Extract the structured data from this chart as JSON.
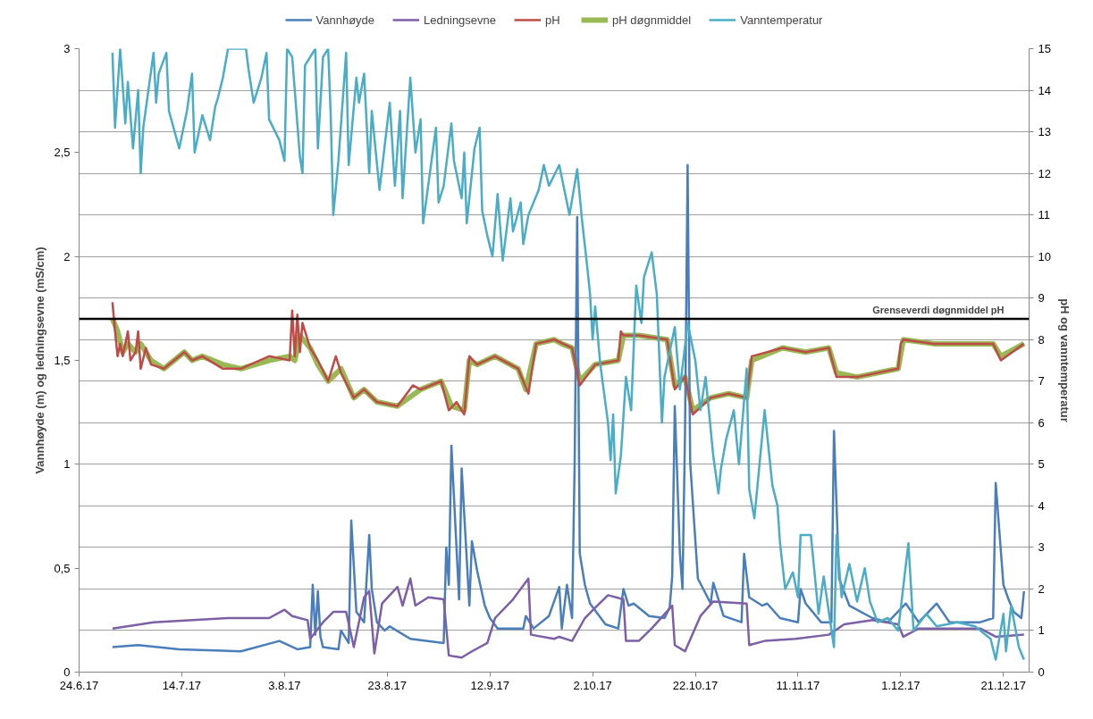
{
  "chart_data": {
    "type": "line",
    "ylabel": "Vannhøyde (m) og ledningsevne (mS/cm)",
    "y2label": "pH og vanntemperatur",
    "xlim": [
      "2017-06-24",
      "2017-12-26"
    ],
    "xticks": [
      {
        "value": "2017-06-24",
        "label": "24.6.17"
      },
      {
        "value": "2017-07-14",
        "label": "14.7.17"
      },
      {
        "value": "2017-08-03",
        "label": "3.8.17"
      },
      {
        "value": "2017-08-23",
        "label": "23.8.17"
      },
      {
        "value": "2017-09-12",
        "label": "12.9.17"
      },
      {
        "value": "2017-10-02",
        "label": "2.10.17"
      },
      {
        "value": "2017-10-22",
        "label": "22.10.17"
      },
      {
        "value": "2017-11-11",
        "label": "11.11.17"
      },
      {
        "value": "2017-12-01",
        "label": "1.12.17"
      },
      {
        "value": "2017-12-21",
        "label": "21.12.17"
      }
    ],
    "ylim": [
      0,
      3
    ],
    "yticks": [
      0,
      {
        "value": 0.5,
        "label": "0,5"
      },
      1,
      {
        "value": 1.5,
        "label": "1,5"
      },
      2,
      {
        "value": 2.5,
        "label": "2,5"
      },
      3
    ],
    "y2lim": [
      0,
      15
    ],
    "y2ticks": [
      0,
      1,
      2,
      3,
      4,
      5,
      6,
      7,
      8,
      9,
      10,
      11,
      12,
      13,
      14,
      15
    ],
    "grid": "y",
    "legend": "top",
    "ref_lines": [
      {
        "axis": "y2",
        "value": 8.5,
        "label": "Grenseverdi døgnmiddel pH",
        "color": "#000000"
      }
    ],
    "series": [
      {
        "name": "Vannhøyde",
        "color": "#4a7ebb",
        "x": [
          "2017-06-30T12:00",
          "2017-07-05T12:00",
          "2017-07-13T12:00",
          "2017-07-25T12:00",
          "2017-08-02",
          "2017-08-05T12:00",
          "2017-08-08",
          "2017-08-08T12:00",
          "2017-08-09",
          "2017-08-09T12:00",
          "2017-08-10",
          "2017-08-10T12:00",
          "2017-08-13T12:00",
          "2017-08-14",
          "2017-08-15T12:00",
          "2017-08-16",
          "2017-08-17",
          "2017-08-18T12:00",
          "2017-08-19T12:00",
          "2017-08-20",
          "2017-08-21",
          "2017-08-22T12:00",
          "2017-08-23T12:00",
          "2017-08-27T12:00",
          "2017-09-03",
          "2017-09-03T12:00",
          "2017-09-04",
          "2017-09-04T12:00",
          "2017-09-06",
          "2017-09-06T12:00",
          "2017-09-08",
          "2017-09-08T12:00",
          "2017-09-09T12:00",
          "2017-09-11",
          "2017-09-12",
          "2017-09-13T12:00",
          "2017-09-18T12:00",
          "2017-09-19",
          "2017-09-20T12:00",
          "2017-09-23T12:00",
          "2017-09-25T12:00",
          "2017-09-26",
          "2017-09-27",
          "2017-09-28",
          "2017-09-28T12:00",
          "2017-09-29",
          "2017-09-29T12:00",
          "2017-09-30T12:00",
          "2017-10-01T12:00",
          "2017-10-04T12:00",
          "2017-10-07",
          "2017-10-08",
          "2017-10-09",
          "2017-10-10",
          "2017-10-13",
          "2017-10-16",
          "2017-10-17",
          "2017-10-17T12:00",
          "2017-10-18",
          "2017-10-19",
          "2017-10-19T12:00",
          "2017-10-20",
          "2017-10-20T12:00",
          "2017-10-21",
          "2017-10-22T12:00",
          "2017-10-25",
          "2017-10-25T12:00",
          "2017-10-27T12:00",
          "2017-10-31",
          "2017-10-31T12:00",
          "2017-11-01T12:00",
          "2017-11-04",
          "2017-11-05",
          "2017-11-07T12:00",
          "2017-11-11",
          "2017-11-11T12:00",
          "2017-11-12T12:00",
          "2017-11-15T12:00",
          "2017-11-17T12:00",
          "2017-11-18",
          "2017-11-19",
          "2017-11-21",
          "2017-11-25T12:00",
          "2017-11-28T12:00",
          "2017-12-02",
          "2017-12-04T12:00",
          "2017-12-08",
          "2017-12-10T12:00",
          "2017-12-16T12:00",
          "2017-12-19",
          "2017-12-19T12:00",
          "2017-12-21",
          "2017-12-22",
          "2017-12-23",
          "2017-12-24T12:00",
          "2017-12-25"
        ],
        "values": [
          0.12,
          0.13,
          0.11,
          0.1,
          0.15,
          0.11,
          0.12,
          0.42,
          0.18,
          0.39,
          0.17,
          0.12,
          0.11,
          0.2,
          0.14,
          0.73,
          0.29,
          0.24,
          0.66,
          0.4,
          0.24,
          0.2,
          0.22,
          0.16,
          0.14,
          0.6,
          0.42,
          1.09,
          0.35,
          0.98,
          0.32,
          0.63,
          0.49,
          0.32,
          0.26,
          0.21,
          0.21,
          0.27,
          0.21,
          0.27,
          0.41,
          0.21,
          0.42,
          0.26,
          1.0,
          2.19,
          0.57,
          0.42,
          0.33,
          0.23,
          0.21,
          0.4,
          0.32,
          0.33,
          0.27,
          0.26,
          0.31,
          0.46,
          1.28,
          0.57,
          0.4,
          1.16,
          2.44,
          1.01,
          0.45,
          0.33,
          0.43,
          0.27,
          0.24,
          0.57,
          0.36,
          0.32,
          0.33,
          0.26,
          0.24,
          0.4,
          0.33,
          0.24,
          0.24,
          1.16,
          0.45,
          0.32,
          0.26,
          0.24,
          0.33,
          0.24,
          0.33,
          0.24,
          0.24,
          0.26,
          0.91,
          0.42,
          0.35,
          0.29,
          0.26,
          0.39
        ]
      },
      {
        "name": "Ledningsevne",
        "color": "#7d5fa5",
        "x": [
          "2017-06-30T12:00",
          "2017-07-08T12:00",
          "2017-07-23",
          "2017-07-31",
          "2017-08-03",
          "2017-08-04T12:00",
          "2017-08-07T12:00",
          "2017-08-08",
          "2017-08-10T12:00",
          "2017-08-12T12:00",
          "2017-08-15",
          "2017-08-16T12:00",
          "2017-08-18T12:00",
          "2017-08-19T12:00",
          "2017-08-20T12:00",
          "2017-08-22",
          "2017-08-25",
          "2017-08-26",
          "2017-08-27T12:00",
          "2017-08-28T12:00",
          "2017-08-31",
          "2017-09-03",
          "2017-09-04",
          "2017-09-06T12:00",
          "2017-09-08T12:00",
          "2017-09-11T12:00",
          "2017-09-13",
          "2017-09-16T12:00",
          "2017-09-19T12:00",
          "2017-09-20",
          "2017-09-24T12:00",
          "2017-09-25T12:00",
          "2017-09-28",
          "2017-09-30T12:00",
          "2017-10-02T12:00",
          "2017-10-05",
          "2017-10-08",
          "2017-10-08T12:00",
          "2017-10-11",
          "2017-10-13T12:00",
          "2017-10-17T12:00",
          "2017-10-18",
          "2017-10-20",
          "2017-10-23",
          "2017-10-25T12:00",
          "2017-11-01",
          "2017-11-01T12:00",
          "2017-11-04T12:00",
          "2017-11-10T12:00",
          "2017-11-17",
          "2017-11-20",
          "2017-11-25T12:00",
          "2017-11-30T12:00",
          "2017-12-01T12:00",
          "2017-12-04T12:00",
          "2017-12-10T12:00",
          "2017-12-16T12:00",
          "2017-12-19T12:00",
          "2017-12-25"
        ],
        "values": [
          0.21,
          0.24,
          0.26,
          0.26,
          0.3,
          0.27,
          0.25,
          0.16,
          0.24,
          0.29,
          0.29,
          0.12,
          0.36,
          0.39,
          0.09,
          0.33,
          0.41,
          0.32,
          0.45,
          0.32,
          0.36,
          0.35,
          0.08,
          0.07,
          0.1,
          0.14,
          0.26,
          0.35,
          0.45,
          0.18,
          0.16,
          0.17,
          0.15,
          0.26,
          0.31,
          0.37,
          0.35,
          0.15,
          0.15,
          0.21,
          0.32,
          0.13,
          0.1,
          0.27,
          0.34,
          0.33,
          0.13,
          0.15,
          0.16,
          0.18,
          0.23,
          0.25,
          0.23,
          0.17,
          0.21,
          0.21,
          0.21,
          0.17,
          0.18
        ]
      },
      {
        "name": "pH",
        "color": "#be4b48",
        "axis": "y2",
        "x": [
          "2017-06-30T12:00",
          "2017-07-01",
          "2017-07-01T12:00",
          "2017-07-02",
          "2017-07-02T12:00",
          "2017-07-03T12:00",
          "2017-07-04",
          "2017-07-05",
          "2017-07-05T12:00",
          "2017-07-06",
          "2017-07-07",
          "2017-07-08",
          "2017-07-10T12:00",
          "2017-07-14T12:00",
          "2017-07-16",
          "2017-07-18",
          "2017-07-22",
          "2017-07-25T12:00",
          "2017-07-31",
          "2017-08-04",
          "2017-08-04T12:00",
          "2017-08-05",
          "2017-08-05T12:00",
          "2017-08-06",
          "2017-08-06T12:00",
          "2017-08-08",
          "2017-08-09T12:00",
          "2017-08-11T12:00",
          "2017-08-13",
          "2017-08-14",
          "2017-08-16T12:00",
          "2017-08-18T12:00",
          "2017-08-21",
          "2017-08-25",
          "2017-08-28",
          "2017-08-29T12:00",
          "2017-09-02T12:00",
          "2017-09-04",
          "2017-09-05T12:00",
          "2017-09-07",
          "2017-09-08",
          "2017-09-09T12:00",
          "2017-09-13",
          "2017-09-17T12:00",
          "2017-09-19T12:00",
          "2017-09-21",
          "2017-09-24T12:00",
          "2017-09-28",
          "2017-09-29T12:00",
          "2017-10-02T12:00",
          "2017-10-07",
          "2017-10-07T12:00",
          "2017-10-08",
          "2017-10-11",
          "2017-10-16T12:00",
          "2017-10-18",
          "2017-10-20",
          "2017-10-21T12:00",
          "2017-10-25",
          "2017-10-28T12:00",
          "2017-11-01",
          "2017-11-02",
          "2017-11-08",
          "2017-11-12T12:00",
          "2017-11-17",
          "2017-11-18T12:00",
          "2017-11-22T12:00",
          "2017-11-30T12:00",
          "2017-12-01",
          "2017-12-01T12:00",
          "2017-12-07T12:00",
          "2017-12-13T12:00",
          "2017-12-19",
          "2017-12-20T12:00",
          "2017-12-25"
        ],
        "values": [
          8.9,
          8.2,
          7.6,
          7.9,
          7.6,
          8.2,
          7.5,
          7.7,
          8.2,
          7.3,
          7.8,
          7.4,
          7.3,
          7.7,
          7.5,
          7.6,
          7.3,
          7.3,
          7.6,
          7.5,
          8.7,
          7.6,
          8.6,
          7.7,
          8.4,
          7.8,
          7.5,
          7.0,
          7.6,
          7.2,
          6.6,
          6.8,
          6.5,
          6.4,
          6.9,
          6.8,
          7.0,
          6.3,
          6.5,
          6.2,
          7.6,
          7.4,
          7.6,
          7.3,
          6.7,
          7.9,
          8.0,
          7.8,
          6.9,
          7.4,
          7.5,
          8.2,
          8.1,
          8.1,
          8.0,
          6.8,
          7.1,
          6.2,
          6.6,
          6.7,
          6.6,
          7.6,
          7.8,
          7.7,
          7.8,
          7.1,
          7.1,
          7.3,
          7.9,
          8.0,
          7.9,
          7.9,
          7.9,
          7.5,
          7.9
        ]
      },
      {
        "name": "pH døgnmiddel",
        "color": "#98b954",
        "axis": "y2",
        "x": [
          "2017-06-30T12:00",
          "2017-07-01T12:00",
          "2017-07-02T12:00",
          "2017-07-03T12:00",
          "2017-07-05",
          "2017-07-06",
          "2017-07-08",
          "2017-07-10T12:00",
          "2017-07-14T12:00",
          "2017-07-16",
          "2017-07-18",
          "2017-07-22",
          "2017-07-25T12:00",
          "2017-07-31",
          "2017-08-04",
          "2017-08-05",
          "2017-08-06",
          "2017-08-08",
          "2017-08-09T12:00",
          "2017-08-11T12:00",
          "2017-08-14",
          "2017-08-16T12:00",
          "2017-08-18T12:00",
          "2017-08-21",
          "2017-08-25",
          "2017-08-29T12:00",
          "2017-09-02T12:00",
          "2017-09-04T12:00",
          "2017-09-07",
          "2017-09-08",
          "2017-09-09T12:00",
          "2017-09-13",
          "2017-09-17T12:00",
          "2017-09-19",
          "2017-09-21",
          "2017-09-24T12:00",
          "2017-09-26",
          "2017-09-28",
          "2017-09-29T12:00",
          "2017-10-02T12:00",
          "2017-10-07",
          "2017-10-08",
          "2017-10-11",
          "2017-10-16T12:00",
          "2017-10-18",
          "2017-10-20",
          "2017-10-21T12:00",
          "2017-10-25",
          "2017-10-28T12:00",
          "2017-11-01",
          "2017-11-02",
          "2017-11-08",
          "2017-11-12T12:00",
          "2017-11-17",
          "2017-11-18T12:00",
          "2017-11-22T12:00",
          "2017-11-30T12:00",
          "2017-12-01T12:00",
          "2017-12-07T12:00",
          "2017-12-13T12:00",
          "2017-12-19",
          "2017-12-20T12:00",
          "2017-12-25"
        ],
        "values": [
          8.5,
          8.2,
          7.7,
          7.9,
          7.7,
          7.9,
          7.5,
          7.3,
          7.7,
          7.5,
          7.6,
          7.4,
          7.3,
          7.5,
          7.6,
          7.5,
          8.1,
          7.8,
          7.4,
          7.0,
          7.3,
          6.6,
          6.8,
          6.5,
          6.4,
          6.8,
          7.0,
          6.4,
          6.3,
          7.5,
          7.4,
          7.6,
          7.3,
          6.8,
          7.9,
          8.0,
          7.9,
          7.8,
          7.0,
          7.4,
          7.5,
          8.1,
          8.1,
          8.0,
          6.9,
          7.1,
          6.3,
          6.6,
          6.7,
          6.6,
          7.5,
          7.8,
          7.7,
          7.8,
          7.2,
          7.1,
          7.3,
          8.0,
          7.9,
          7.9,
          7.9,
          7.6,
          7.9
        ]
      },
      {
        "name": "Vanntemperatur",
        "color": "#4bacc6",
        "axis": "y2",
        "x": [
          "2017-06-30T12:00",
          "2017-07-01",
          "2017-07-02",
          "2017-07-03",
          "2017-07-03T12:00",
          "2017-07-04T12:00",
          "2017-07-05T12:00",
          "2017-07-06",
          "2017-07-06T12:00",
          "2017-07-08T12:00",
          "2017-07-09",
          "2017-07-09T12:00",
          "2017-07-11",
          "2017-07-11T12:00",
          "2017-07-13T12:00",
          "2017-07-15",
          "2017-07-16",
          "2017-07-16T12:00",
          "2017-07-18",
          "2017-07-19T12:00",
          "2017-07-20T12:00",
          "2017-07-21",
          "2017-07-22",
          "2017-07-23",
          "2017-07-26T12:00",
          "2017-07-27",
          "2017-07-28",
          "2017-07-29T12:00",
          "2017-07-30T12:00",
          "2017-07-31",
          "2017-08-02",
          "2017-08-03",
          "2017-08-03T12:00",
          "2017-08-04T12:00",
          "2017-08-06",
          "2017-08-06T12:00",
          "2017-08-07",
          "2017-08-09",
          "2017-08-09T12:00",
          "2017-08-10T12:00",
          "2017-08-11T12:00",
          "2017-08-12",
          "2017-08-12T12:00",
          "2017-08-13T12:00",
          "2017-08-15",
          "2017-08-15T12:00",
          "2017-08-17",
          "2017-08-17T12:00",
          "2017-08-18T12:00",
          "2017-08-19T12:00",
          "2017-08-20",
          "2017-08-21T12:00",
          "2017-08-23T12:00",
          "2017-08-24T12:00",
          "2017-08-25T12:00",
          "2017-08-26",
          "2017-08-27T12:00",
          "2017-08-28T12:00",
          "2017-08-29T12:00",
          "2017-08-30",
          "2017-09-01T12:00",
          "2017-09-02",
          "2017-09-03",
          "2017-09-04T12:00",
          "2017-09-05",
          "2017-09-06T12:00",
          "2017-09-07",
          "2017-09-07T12:00",
          "2017-09-09",
          "2017-09-10",
          "2017-09-10T12:00",
          "2017-09-11T12:00",
          "2017-09-12T12:00",
          "2017-09-13T12:00",
          "2017-09-14T12:00",
          "2017-09-16",
          "2017-09-16T12:00",
          "2017-09-18",
          "2017-09-18T12:00",
          "2017-09-19T12:00",
          "2017-09-21T12:00",
          "2017-09-22T12:00",
          "2017-09-23T12:00",
          "2017-09-25T12:00",
          "2017-09-27T12:00",
          "2017-09-29",
          "2017-09-30",
          "2017-10-01",
          "2017-10-01T12:00",
          "2017-10-02",
          "2017-10-02T12:00",
          "2017-10-03T12:00",
          "2017-10-05",
          "2017-10-05T12:00",
          "2017-10-06",
          "2017-10-06T12:00",
          "2017-10-07T12:00",
          "2017-10-08T12:00",
          "2017-10-09T12:00",
          "2017-10-10T12:00",
          "2017-10-11T12:00",
          "2017-10-12",
          "2017-10-13T12:00",
          "2017-10-14T12:00",
          "2017-10-15T12:00",
          "2017-10-16",
          "2017-10-18",
          "2017-10-19",
          "2017-10-20T12:00",
          "2017-10-22",
          "2017-10-23",
          "2017-10-24",
          "2017-10-25T12:00",
          "2017-10-26T12:00",
          "2017-10-27",
          "2017-10-28",
          "2017-10-29T12:00",
          "2017-10-30T12:00",
          "2017-11-01",
          "2017-11-01T12:00",
          "2017-11-02T12:00",
          "2017-11-04T12:00",
          "2017-11-06",
          "2017-11-07",
          "2017-11-07T12:00",
          "2017-11-08T12:00",
          "2017-11-10",
          "2017-11-11",
          "2017-11-11T12:00",
          "2017-11-13T12:00",
          "2017-11-15",
          "2017-11-16",
          "2017-11-18",
          "2017-11-18T12:00",
          "2017-11-19T12:00",
          "2017-11-21",
          "2017-11-22T12:00",
          "2017-11-24",
          "2017-11-25",
          "2017-11-26T12:00",
          "2017-11-28T12:00",
          "2017-11-30T12:00",
          "2017-12-02T12:00",
          "2017-12-03T12:00",
          "2017-12-06",
          "2017-12-08",
          "2017-12-12",
          "2017-12-15T12:00",
          "2017-12-18T12:00",
          "2017-12-19T12:00",
          "2017-12-21",
          "2017-12-21T12:00",
          "2017-12-22T12:00",
          "2017-12-24",
          "2017-12-25"
        ],
        "values": [
          14.9,
          13.1,
          15.0,
          13.2,
          14.2,
          12.6,
          14.0,
          12.0,
          13.1,
          14.9,
          13.7,
          14.4,
          14.9,
          13.5,
          12.6,
          13.5,
          14.4,
          12.5,
          13.4,
          12.8,
          13.6,
          13.8,
          14.3,
          15.0,
          15.0,
          14.5,
          13.7,
          14.3,
          14.9,
          13.3,
          12.8,
          12.3,
          15.0,
          14.8,
          12.4,
          12.0,
          14.6,
          15.0,
          12.6,
          14.8,
          15.0,
          13.4,
          11.0,
          12.3,
          14.9,
          12.2,
          14.3,
          13.7,
          14.4,
          12.0,
          13.5,
          11.6,
          13.7,
          11.7,
          13.5,
          11.4,
          14.3,
          12.5,
          13.3,
          10.8,
          13.1,
          11.3,
          11.7,
          13.2,
          12.3,
          11.4,
          12.5,
          10.8,
          12.6,
          13.1,
          11.1,
          10.5,
          10.0,
          11.5,
          9.9,
          11.4,
          10.6,
          11.3,
          10.3,
          11.0,
          11.6,
          12.2,
          11.7,
          12.2,
          11.0,
          12.1,
          10.8,
          9.7,
          9.1,
          8.0,
          8.8,
          7.4,
          6.0,
          5.1,
          6.2,
          4.3,
          5.2,
          7.1,
          6.3,
          9.3,
          8.4,
          9.5,
          10.1,
          9.1,
          6.0,
          7.1,
          8.3,
          6.8,
          8.4,
          7.5,
          6.3,
          7.1,
          5.2,
          4.3,
          4.9,
          5.6,
          6.3,
          5.0,
          7.3,
          4.4,
          3.7,
          6.3,
          4.5,
          4.0,
          3.1,
          2.0,
          2.4,
          1.8,
          3.3,
          3.3,
          1.4,
          2.3,
          0.6,
          3.3,
          1.8,
          2.6,
          1.7,
          2.5,
          1.7,
          1.2,
          1.3,
          1.0,
          3.1,
          1.0,
          1.4,
          1.1,
          1.2,
          1.1,
          0.8,
          0.3,
          1.4,
          0.5,
          1.6,
          0.6,
          0.3
        ]
      }
    ]
  }
}
